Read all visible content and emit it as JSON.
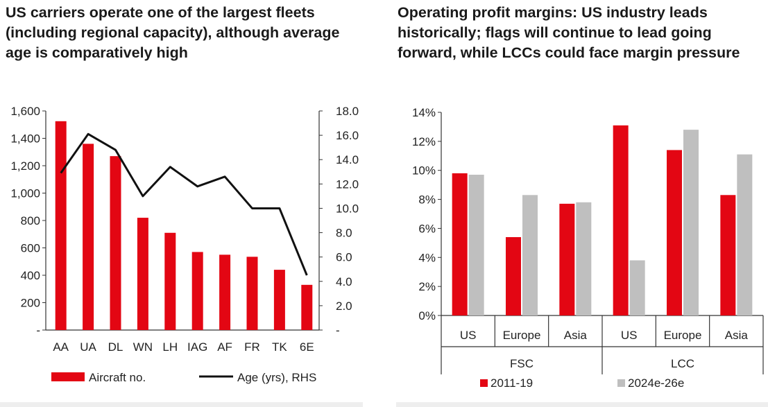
{
  "colors": {
    "red": "#e30613",
    "gray": "#bfbfbf",
    "line": "#111111"
  },
  "left_title": "US carriers operate one of the largest fleets (including regional capacity), although average age is comparatively high",
  "right_title": "Operating profit margins: US industry leads historically; flags will continue to lead going forward, while LCCs could face margin pressure",
  "chart_data": [
    {
      "type": "bar",
      "title": "US carriers operate one of the largest fleets (including regional capacity), although average age is comparatively high",
      "categories": [
        "AA",
        "UA",
        "DL",
        "WN",
        "LH",
        "IAG",
        "AF",
        "FR",
        "TK",
        "6E"
      ],
      "series": [
        {
          "name": "Aircraft no.",
          "kind": "bar",
          "axis": "left",
          "values": [
            1525,
            1360,
            1270,
            820,
            710,
            570,
            550,
            535,
            440,
            330
          ]
        },
        {
          "name": "Age (yrs), RHS",
          "kind": "line",
          "axis": "right",
          "values": [
            12.9,
            16.1,
            14.8,
            11.0,
            13.4,
            11.8,
            12.6,
            10.0,
            10.0,
            4.5
          ]
        }
      ],
      "ylim_left": [
        0,
        1600
      ],
      "ylim_right": [
        0,
        18
      ],
      "yticks_left": [
        "1,600",
        "1,400",
        "1,200",
        "1,000",
        "800",
        "600",
        "400",
        "200",
        "-"
      ],
      "yticks_right": [
        "18.0",
        "16.0",
        "14.0",
        "12.0",
        "10.0",
        "8.0",
        "6.0",
        "4.0",
        "2.0",
        "-"
      ],
      "legend": [
        "Aircraft no.",
        "Age (yrs), RHS"
      ],
      "legend_position": "bottom"
    },
    {
      "type": "bar",
      "title": "Operating profit margins: US industry leads historically; flags will continue to lead going forward, while LCCs could face margin pressure",
      "groups": [
        "FSC",
        "LCC"
      ],
      "categories": [
        "US",
        "Europe",
        "Asia",
        "US",
        "Europe",
        "Asia"
      ],
      "series": [
        {
          "name": "2011-19",
          "values": [
            9.8,
            5.4,
            7.7,
            13.1,
            11.4,
            8.3
          ]
        },
        {
          "name": "2024e-26e",
          "values": [
            9.7,
            8.3,
            7.8,
            3.8,
            12.8,
            11.1
          ]
        }
      ],
      "ylim": [
        0,
        14
      ],
      "yticks": [
        "14%",
        "12%",
        "10%",
        "8%",
        "6%",
        "4%",
        "2%",
        "0%"
      ],
      "legend": [
        "2011-19",
        "2024e-26e"
      ],
      "legend_position": "bottom"
    }
  ]
}
